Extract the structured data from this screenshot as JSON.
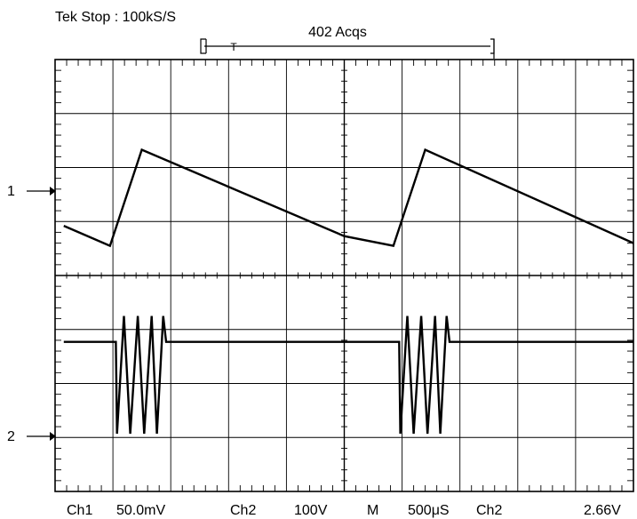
{
  "header": {
    "status": "Tek Stop : 100kS/S",
    "acqs": "402 Acqs",
    "trigger_marker": "T"
  },
  "channels": {
    "ch1_marker": "1",
    "ch2_marker": "2"
  },
  "readout": {
    "ch1_label": "Ch1",
    "ch1_scale": "50.0mV",
    "ch2_label": "Ch2",
    "ch2_scale": "100V",
    "timebase_label": "M",
    "timebase": "500μS",
    "trigger_source": "Ch2",
    "trigger_level": "2.66V"
  },
  "colors": {
    "trace": "#000000",
    "grid": "#000000",
    "background": "#ffffff"
  },
  "chart_data": {
    "type": "line",
    "grid": true,
    "x_divisions": 10,
    "y_divisions": 8,
    "xlim": [
      0,
      10
    ],
    "ylim": [
      0,
      8
    ],
    "series": [
      {
        "points": [
          [
            0.15,
            4.92
          ],
          [
            0.95,
            4.55
          ],
          [
            1.5,
            6.33
          ],
          [
            5.0,
            4.73
          ],
          [
            5.0,
            4.73
          ],
          [
            5.85,
            4.55
          ],
          [
            6.4,
            6.33
          ],
          [
            10.0,
            4.6
          ]
        ]
      },
      {
        "points": [
          [
            0.15,
            2.77
          ],
          [
            1.05,
            2.77
          ],
          [
            1.07,
            1.07
          ],
          [
            1.19,
            3.25
          ],
          [
            1.3,
            1.07
          ],
          [
            1.43,
            3.25
          ],
          [
            1.54,
            1.07
          ],
          [
            1.67,
            3.25
          ],
          [
            1.76,
            1.07
          ],
          [
            1.87,
            3.25
          ],
          [
            1.92,
            2.77
          ],
          [
            5.0,
            2.77
          ],
          [
            5.0,
            2.77
          ],
          [
            5.95,
            2.77
          ],
          [
            5.97,
            1.07
          ],
          [
            6.09,
            3.25
          ],
          [
            6.2,
            1.07
          ],
          [
            6.33,
            3.25
          ],
          [
            6.44,
            1.07
          ],
          [
            6.57,
            3.25
          ],
          [
            6.66,
            1.07
          ],
          [
            6.77,
            3.25
          ],
          [
            6.82,
            2.77
          ],
          [
            10.0,
            2.77
          ]
        ]
      }
    ]
  }
}
